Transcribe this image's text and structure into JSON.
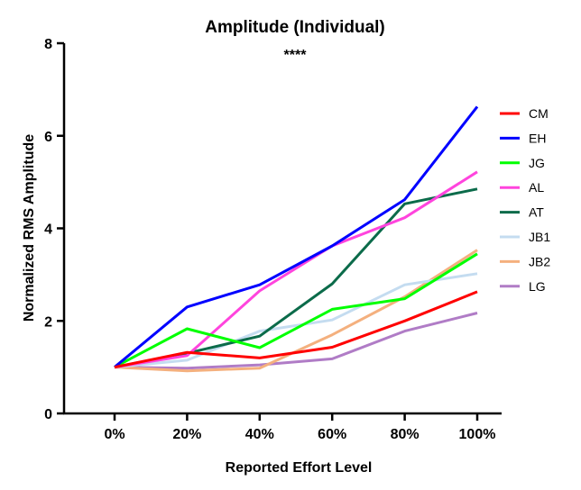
{
  "chart_data": {
    "type": "line",
    "title": "Amplitude (Individual)",
    "annotation": "****",
    "xlabel": "Reported Effort Level",
    "ylabel": "Normalized RMS Amplitude",
    "categories": [
      "0%",
      "20%",
      "40%",
      "60%",
      "80%",
      "100%"
    ],
    "yticks": [
      "0",
      "2",
      "4",
      "6",
      "8"
    ],
    "ylim": [
      0,
      8
    ],
    "grid": false,
    "legend_position": "right",
    "series": [
      {
        "name": "CM",
        "color": "#ff0000",
        "values": [
          1.0,
          1.32,
          1.2,
          1.43,
          2.0,
          2.63
        ]
      },
      {
        "name": "EH",
        "color": "#0000ff",
        "values": [
          1.0,
          2.3,
          2.78,
          3.62,
          4.62,
          6.63
        ]
      },
      {
        "name": "JG",
        "color": "#00ff00",
        "values": [
          1.0,
          1.83,
          1.42,
          2.25,
          2.48,
          3.45
        ]
      },
      {
        "name": "AL",
        "color": "#ff44dd",
        "values": [
          1.0,
          1.25,
          2.65,
          3.62,
          4.23,
          5.22
        ]
      },
      {
        "name": "AT",
        "color": "#0b6b4a",
        "values": [
          1.0,
          1.3,
          1.67,
          2.8,
          4.53,
          4.85
        ]
      },
      {
        "name": "JB1",
        "color": "#c4dcf0",
        "values": [
          1.0,
          1.15,
          1.78,
          2.02,
          2.78,
          3.02
        ]
      },
      {
        "name": "JB2",
        "color": "#f4b07e",
        "values": [
          1.0,
          0.92,
          0.98,
          1.7,
          2.52,
          3.53
        ]
      },
      {
        "name": "LG",
        "color": "#b07cc6",
        "values": [
          1.0,
          0.98,
          1.05,
          1.18,
          1.78,
          2.17
        ]
      }
    ]
  }
}
